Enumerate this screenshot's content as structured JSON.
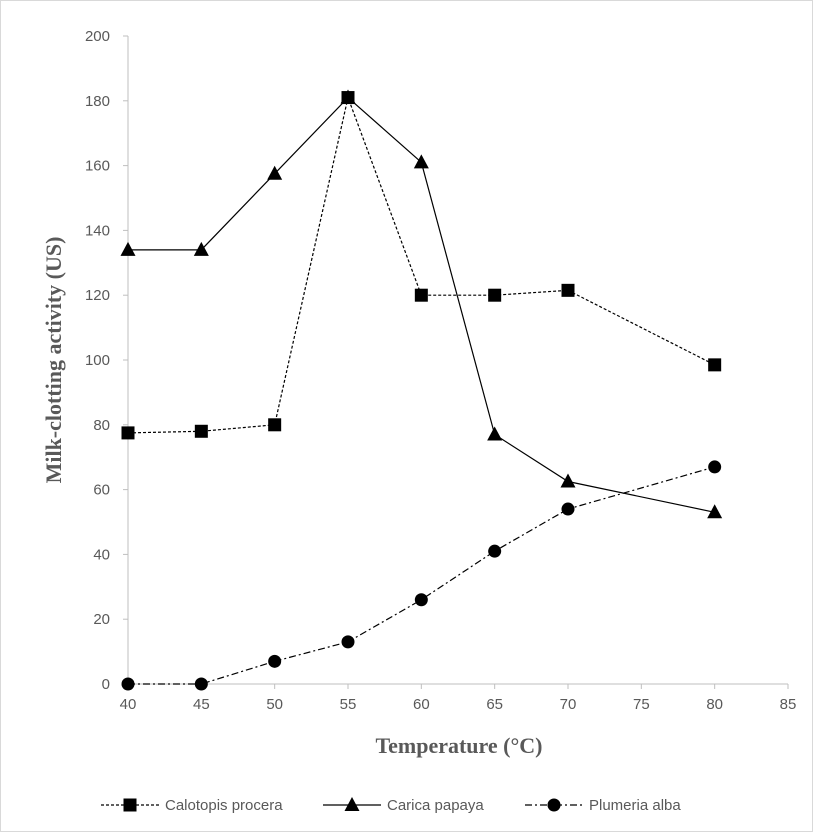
{
  "chart_data": {
    "type": "line",
    "xlabel": "Temperature  (°C)",
    "ylabel": "Milk-clotting activity (US)",
    "xlim": [
      40,
      85
    ],
    "ylim": [
      0,
      200
    ],
    "x_ticks": [
      40,
      45,
      50,
      55,
      60,
      65,
      70,
      75,
      80,
      85
    ],
    "y_ticks": [
      0,
      20,
      40,
      60,
      80,
      100,
      120,
      140,
      160,
      180,
      200
    ],
    "grid": false,
    "legend_position": "bottom",
    "series": [
      {
        "name": "Calotopis procera",
        "marker": "square",
        "line_style": "dotted",
        "color": "#000000",
        "points": [
          [
            40,
            77.5
          ],
          [
            45,
            78
          ],
          [
            50,
            80
          ],
          [
            55,
            181
          ],
          [
            60,
            120
          ],
          [
            65,
            120
          ],
          [
            70,
            121.5
          ],
          [
            80,
            98.5
          ]
        ]
      },
      {
        "name": "Carica papaya",
        "marker": "triangle",
        "line_style": "solid",
        "color": "#000000",
        "points": [
          [
            40,
            134
          ],
          [
            45,
            134
          ],
          [
            50,
            157.5
          ],
          [
            55,
            181
          ],
          [
            60,
            161
          ],
          [
            65,
            77
          ],
          [
            70,
            62.5
          ],
          [
            80,
            53
          ]
        ]
      },
      {
        "name": "Plumeria alba",
        "marker": "circle",
        "line_style": "dash-dot",
        "color": "#000000",
        "points": [
          [
            40,
            0
          ],
          [
            45,
            0
          ],
          [
            50,
            7
          ],
          [
            55,
            13
          ],
          [
            60,
            26
          ],
          [
            65,
            41
          ],
          [
            70,
            54
          ],
          [
            80,
            67
          ]
        ]
      }
    ]
  }
}
